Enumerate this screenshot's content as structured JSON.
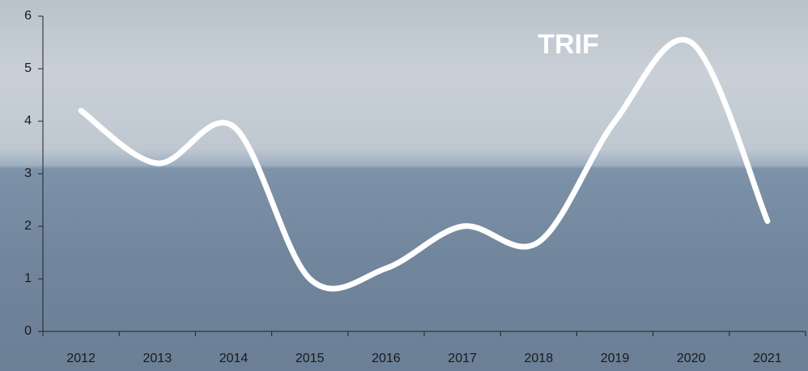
{
  "chart_data": {
    "type": "line",
    "title": "TRIF",
    "categories": [
      "2012",
      "2013",
      "2014",
      "2015",
      "2016",
      "2017",
      "2018",
      "2019",
      "2020",
      "2021"
    ],
    "values": [
      4.2,
      3.2,
      3.9,
      1.0,
      1.2,
      2.0,
      1.7,
      4.0,
      5.5,
      2.1
    ],
    "color": "#ffffff",
    "smooth": true,
    "ylim": [
      0,
      6
    ],
    "yticks": [
      0,
      1,
      2,
      3,
      4,
      5,
      6
    ],
    "grid": false
  }
}
